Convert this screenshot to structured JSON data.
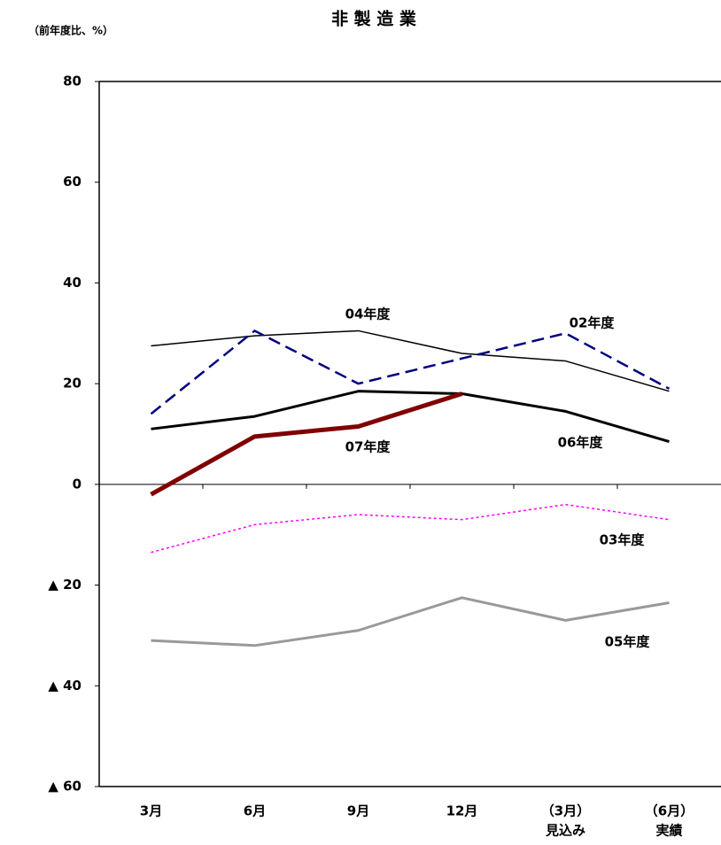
{
  "chart_data": {
    "type": "line",
    "title": "非 製 造 業",
    "subtitle": "（前年度比、%）",
    "categories": [
      [
        "3月"
      ],
      [
        "6月"
      ],
      [
        "9月"
      ],
      [
        "12月"
      ],
      [
        "（3月）",
        "見込み"
      ],
      [
        "（6月）",
        "実績"
      ]
    ],
    "ylim": [
      -60,
      80
    ],
    "yticks": [
      {
        "value": -60,
        "label": "▲ 60"
      },
      {
        "value": -40,
        "label": "▲ 40"
      },
      {
        "value": -20,
        "label": "▲ 20"
      },
      0,
      20,
      40,
      60,
      80
    ],
    "series": [
      {
        "name": "04年度",
        "color": "#000000",
        "style": "thin",
        "values": [
          27.5,
          29.5,
          30.5,
          26,
          24.5,
          18.5
        ]
      },
      {
        "name": "02年度",
        "color": "#000080",
        "style": "dashed",
        "values": [
          14,
          30.5,
          20,
          25,
          30,
          19
        ]
      },
      {
        "name": "06年度",
        "color": "#000000",
        "style": "thick",
        "values": [
          11,
          13.5,
          18.5,
          18,
          14.5,
          8.5
        ]
      },
      {
        "name": "07年度",
        "color": "#800000",
        "style": "heavy",
        "values": [
          -2,
          9.5,
          11.5,
          18,
          null,
          null
        ]
      },
      {
        "name": "03年度",
        "color": "#ff00ff",
        "style": "dotted",
        "values": [
          -13.5,
          -8,
          -6,
          -7,
          -4,
          -7
        ]
      },
      {
        "name": "05年度",
        "color": "#999999",
        "style": "thick",
        "values": [
          -31,
          -32,
          -29,
          -22.5,
          -27,
          -23.5
        ]
      }
    ]
  }
}
